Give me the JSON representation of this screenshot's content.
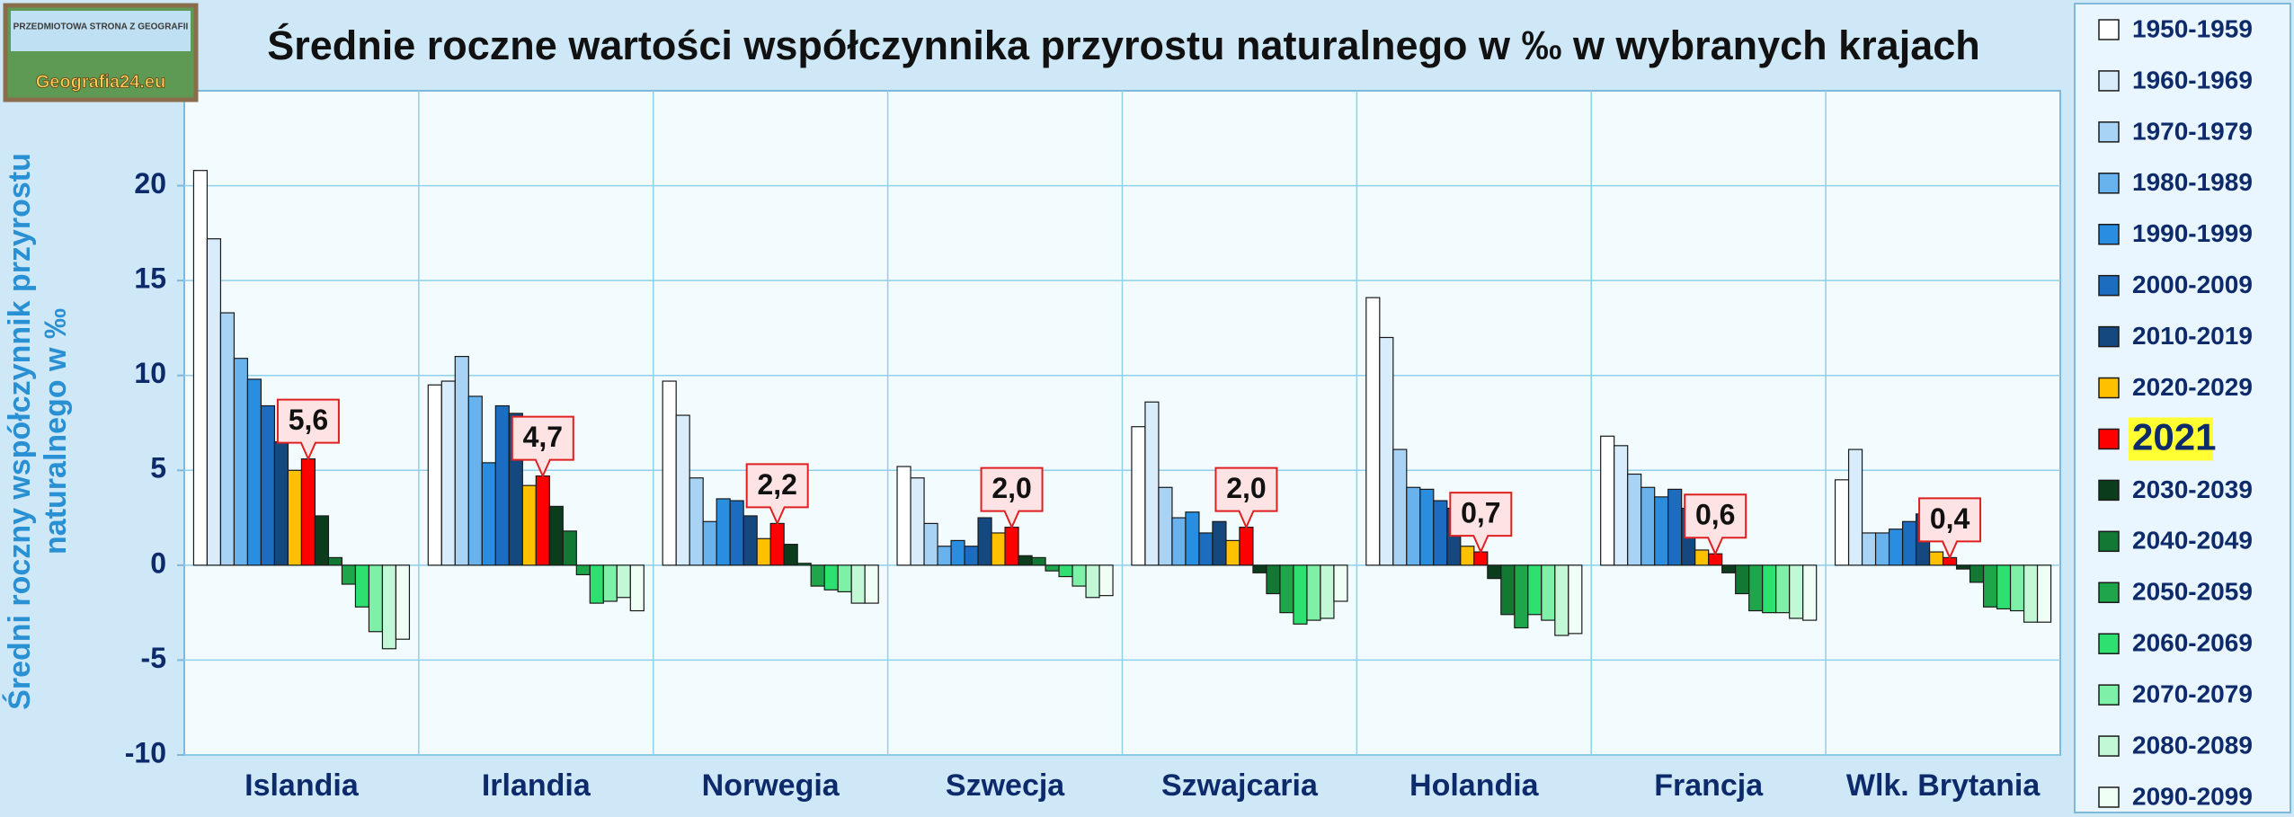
{
  "logo": {
    "top": "PRZEDMIOTOWA STRONA Z GEOGRAFII",
    "site": "Geografia24.eu"
  },
  "chart_data": {
    "type": "bar",
    "title": "Średnie roczne wartości współczynnika przyrostu naturalnego w ‰ w wybranych krajach",
    "ylabel": "Średni roczny współczynnik przyrostu naturalnego w ‰",
    "categories": [
      "Islandia",
      "Irlandia",
      "Norwegia",
      "Szwecja",
      "Szwajcaria",
      "Holandia",
      "Francja",
      "Wlk. Brytania"
    ],
    "ylim": [
      -10,
      25
    ],
    "yticks": [
      -10,
      -5,
      0,
      5,
      10,
      15,
      20
    ],
    "grid": true,
    "series": [
      {
        "name": "1950-1959",
        "color": "#ffffff",
        "values": [
          20.8,
          9.5,
          9.7,
          5.2,
          7.3,
          14.1,
          6.8,
          4.5
        ]
      },
      {
        "name": "1960-1969",
        "color": "#d8ecfb",
        "values": [
          17.2,
          9.7,
          7.9,
          4.6,
          8.6,
          12.0,
          6.3,
          6.1
        ]
      },
      {
        "name": "1970-1979",
        "color": "#a8d3f5",
        "values": [
          13.3,
          11.0,
          4.6,
          2.2,
          4.1,
          6.1,
          4.8,
          1.7
        ]
      },
      {
        "name": "1980-1989",
        "color": "#68b3ee",
        "values": [
          10.9,
          8.9,
          2.3,
          1.0,
          2.5,
          4.1,
          4.1,
          1.7
        ]
      },
      {
        "name": "1990-1999",
        "color": "#2a8ee0",
        "values": [
          9.8,
          5.4,
          3.5,
          1.3,
          2.8,
          4.0,
          3.6,
          1.9
        ]
      },
      {
        "name": "2000-2009",
        "color": "#1c6cc0",
        "values": [
          8.4,
          8.4,
          3.4,
          1.0,
          1.7,
          3.4,
          4.0,
          2.3
        ]
      },
      {
        "name": "2010-2019",
        "color": "#15487f",
        "values": [
          6.5,
          8.0,
          2.6,
          2.5,
          2.3,
          3.0,
          3.0,
          2.7
        ]
      },
      {
        "name": "2020-2029",
        "color": "#ffc000",
        "values": [
          5.0,
          4.2,
          1.4,
          1.7,
          1.3,
          1.0,
          0.8,
          0.7
        ]
      },
      {
        "name": "2021",
        "color": "#ff0000",
        "highlight": true,
        "values": [
          5.6,
          4.7,
          2.2,
          2.0,
          2.0,
          0.7,
          0.6,
          0.4
        ],
        "value_labels": [
          "5,6",
          "4,7",
          "2,2",
          "2,0",
          "2,0",
          "0,7",
          "0,6",
          "0,4"
        ]
      },
      {
        "name": "2030-2039",
        "color": "#0b3d1c",
        "values": [
          2.6,
          3.1,
          1.1,
          0.5,
          -0.4,
          -0.7,
          -0.4,
          -0.2
        ]
      },
      {
        "name": "2040-2049",
        "color": "#127833",
        "values": [
          0.4,
          1.8,
          0.1,
          0.4,
          -1.5,
          -2.6,
          -1.5,
          -0.9
        ]
      },
      {
        "name": "2050-2059",
        "color": "#1fa64a",
        "values": [
          -1.0,
          -0.5,
          -1.1,
          -0.3,
          -2.5,
          -3.3,
          -2.4,
          -2.2
        ]
      },
      {
        "name": "2060-2069",
        "color": "#2ee070",
        "values": [
          -2.2,
          -2.0,
          -1.3,
          -0.6,
          -3.1,
          -2.6,
          -2.5,
          -2.3
        ]
      },
      {
        "name": "2070-2079",
        "color": "#7ff0a8",
        "values": [
          -3.5,
          -1.9,
          -1.4,
          -1.1,
          -2.9,
          -2.9,
          -2.5,
          -2.4
        ]
      },
      {
        "name": "2080-2089",
        "color": "#c2f8d6",
        "values": [
          -4.4,
          -1.7,
          -2.0,
          -1.7,
          -2.8,
          -3.7,
          -2.8,
          -3.0
        ]
      },
      {
        "name": "2090-2099",
        "color": "#f0fff6",
        "values": [
          -3.9,
          -2.4,
          -2.0,
          -1.6,
          -1.9,
          -3.6,
          -2.9,
          -3.0
        ]
      }
    ]
  }
}
